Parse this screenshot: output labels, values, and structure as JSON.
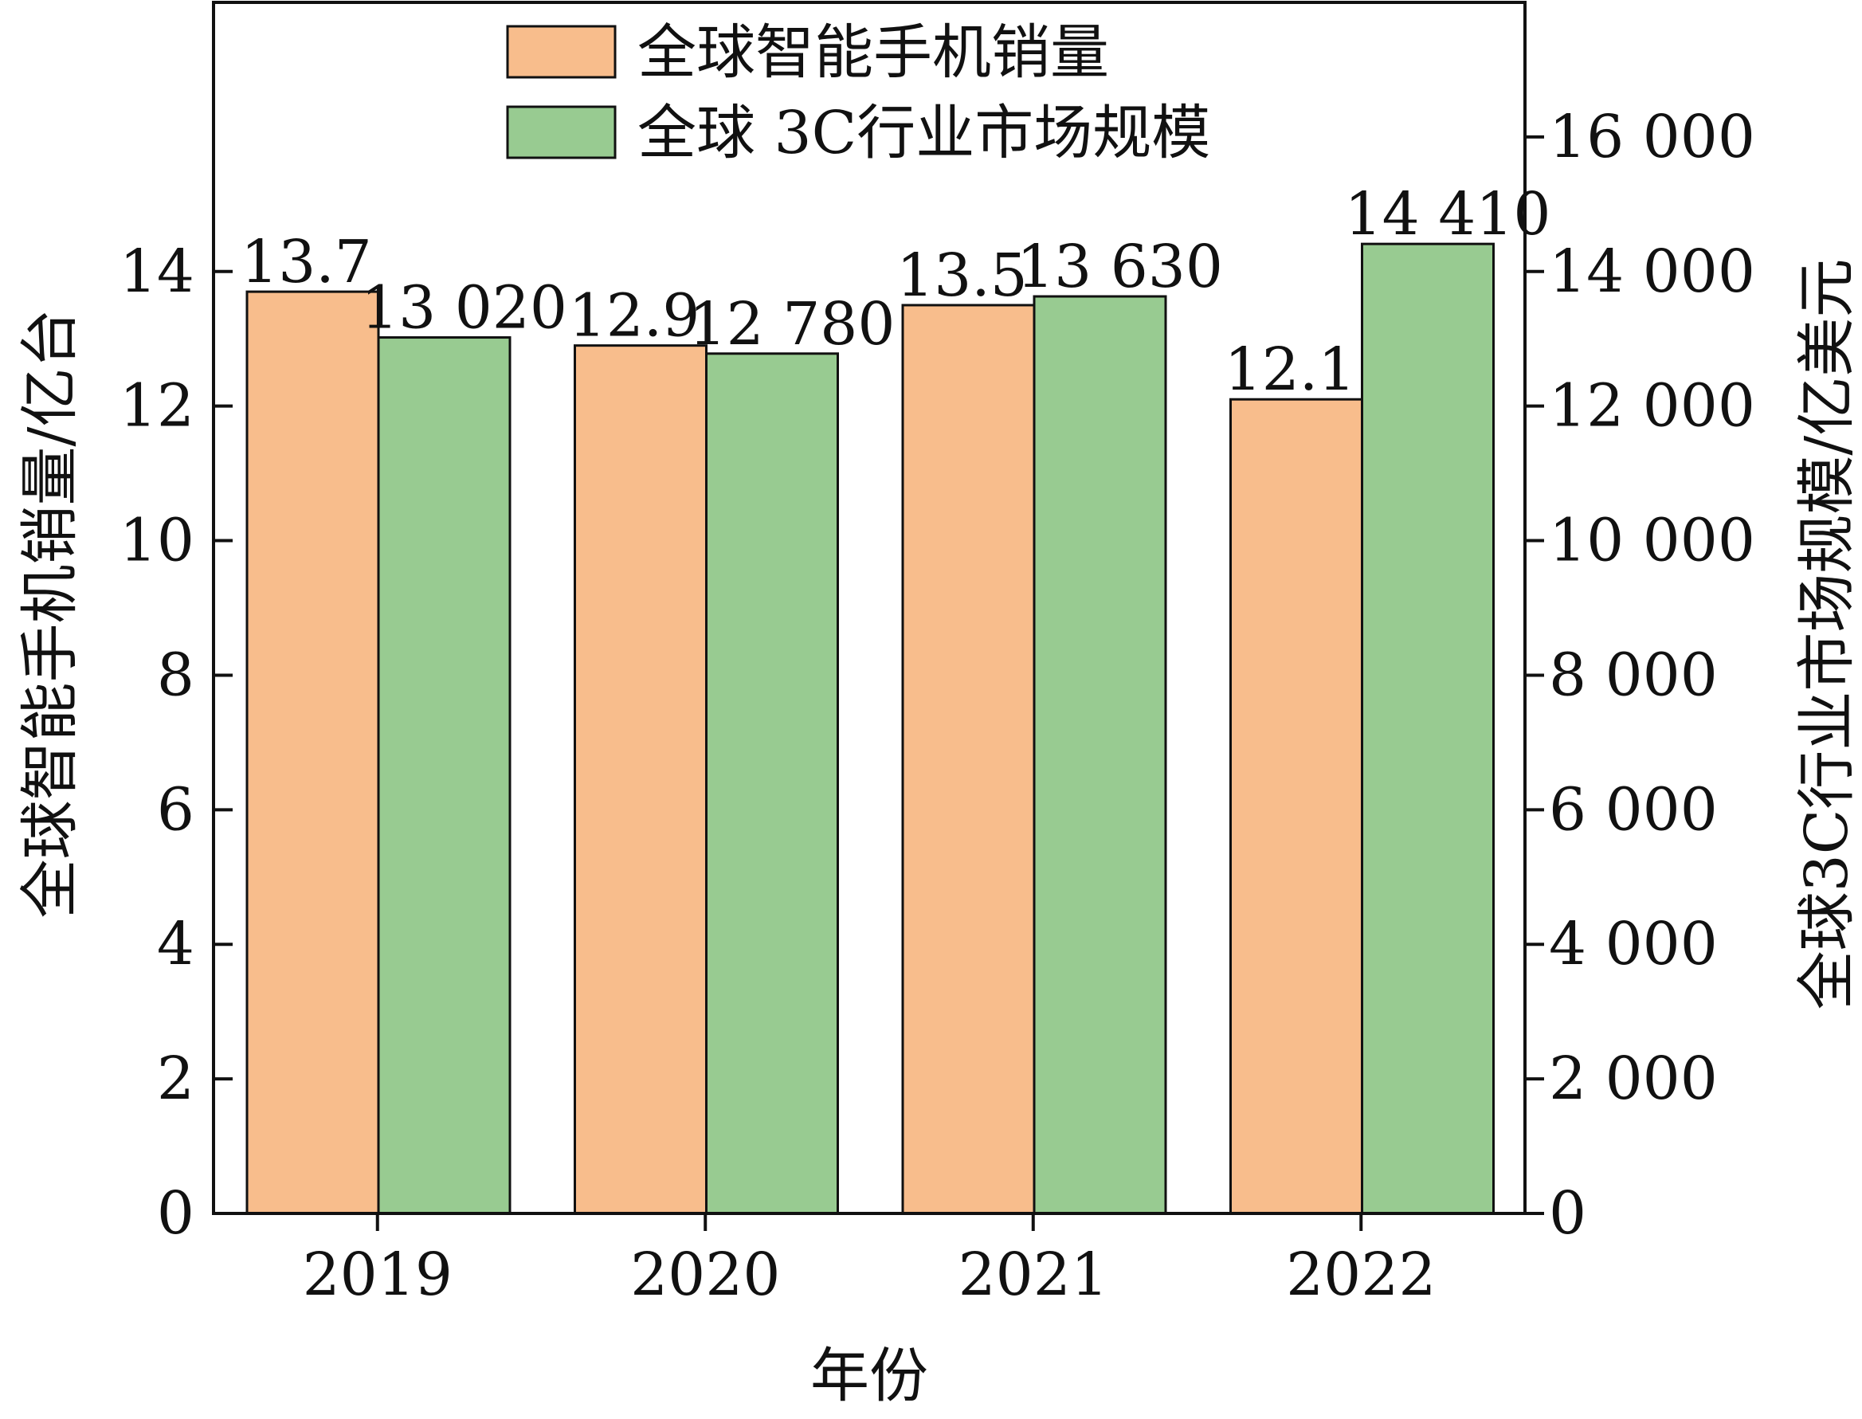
{
  "chart_data": {
    "type": "bar",
    "categories": [
      "2019",
      "2020",
      "2021",
      "2022"
    ],
    "series": [
      {
        "name": "全球智能手机销量",
        "axis": "left",
        "values": [
          13.7,
          12.9,
          13.5,
          12.1
        ],
        "labels": [
          "13.7",
          "12.9",
          "13.5",
          "12.1"
        ],
        "color": "#f8bd8c"
      },
      {
        "name": "全球 3C行业市场规模",
        "axis": "right",
        "values": [
          13020,
          12780,
          13630,
          14410
        ],
        "labels": [
          "13 020",
          "12 780",
          "13 630",
          "14 410"
        ],
        "color": "#98cb91"
      }
    ],
    "xlabel": "年份",
    "ylabel_left": "全球智能手机销量/亿台",
    "ylabel_right": "全球3C行业市场规模/亿美元",
    "ylim_left": [
      0,
      18
    ],
    "ylim_right": [
      0,
      18000
    ],
    "left_ticks": [
      0,
      2,
      4,
      6,
      8,
      10,
      12,
      14
    ],
    "left_tick_labels": [
      "0",
      "2",
      "4",
      "6",
      "8",
      "10",
      "12",
      "14"
    ],
    "right_ticks": [
      0,
      2000,
      4000,
      6000,
      8000,
      10000,
      12000,
      14000,
      16000
    ],
    "right_tick_labels": [
      "0",
      "2 000",
      "4 000",
      "6 000",
      "8 000",
      "10 000",
      "12 000",
      "14 000",
      "16 000"
    ],
    "legend_position": "top-center",
    "grid": false,
    "edge_color": "#111111"
  }
}
